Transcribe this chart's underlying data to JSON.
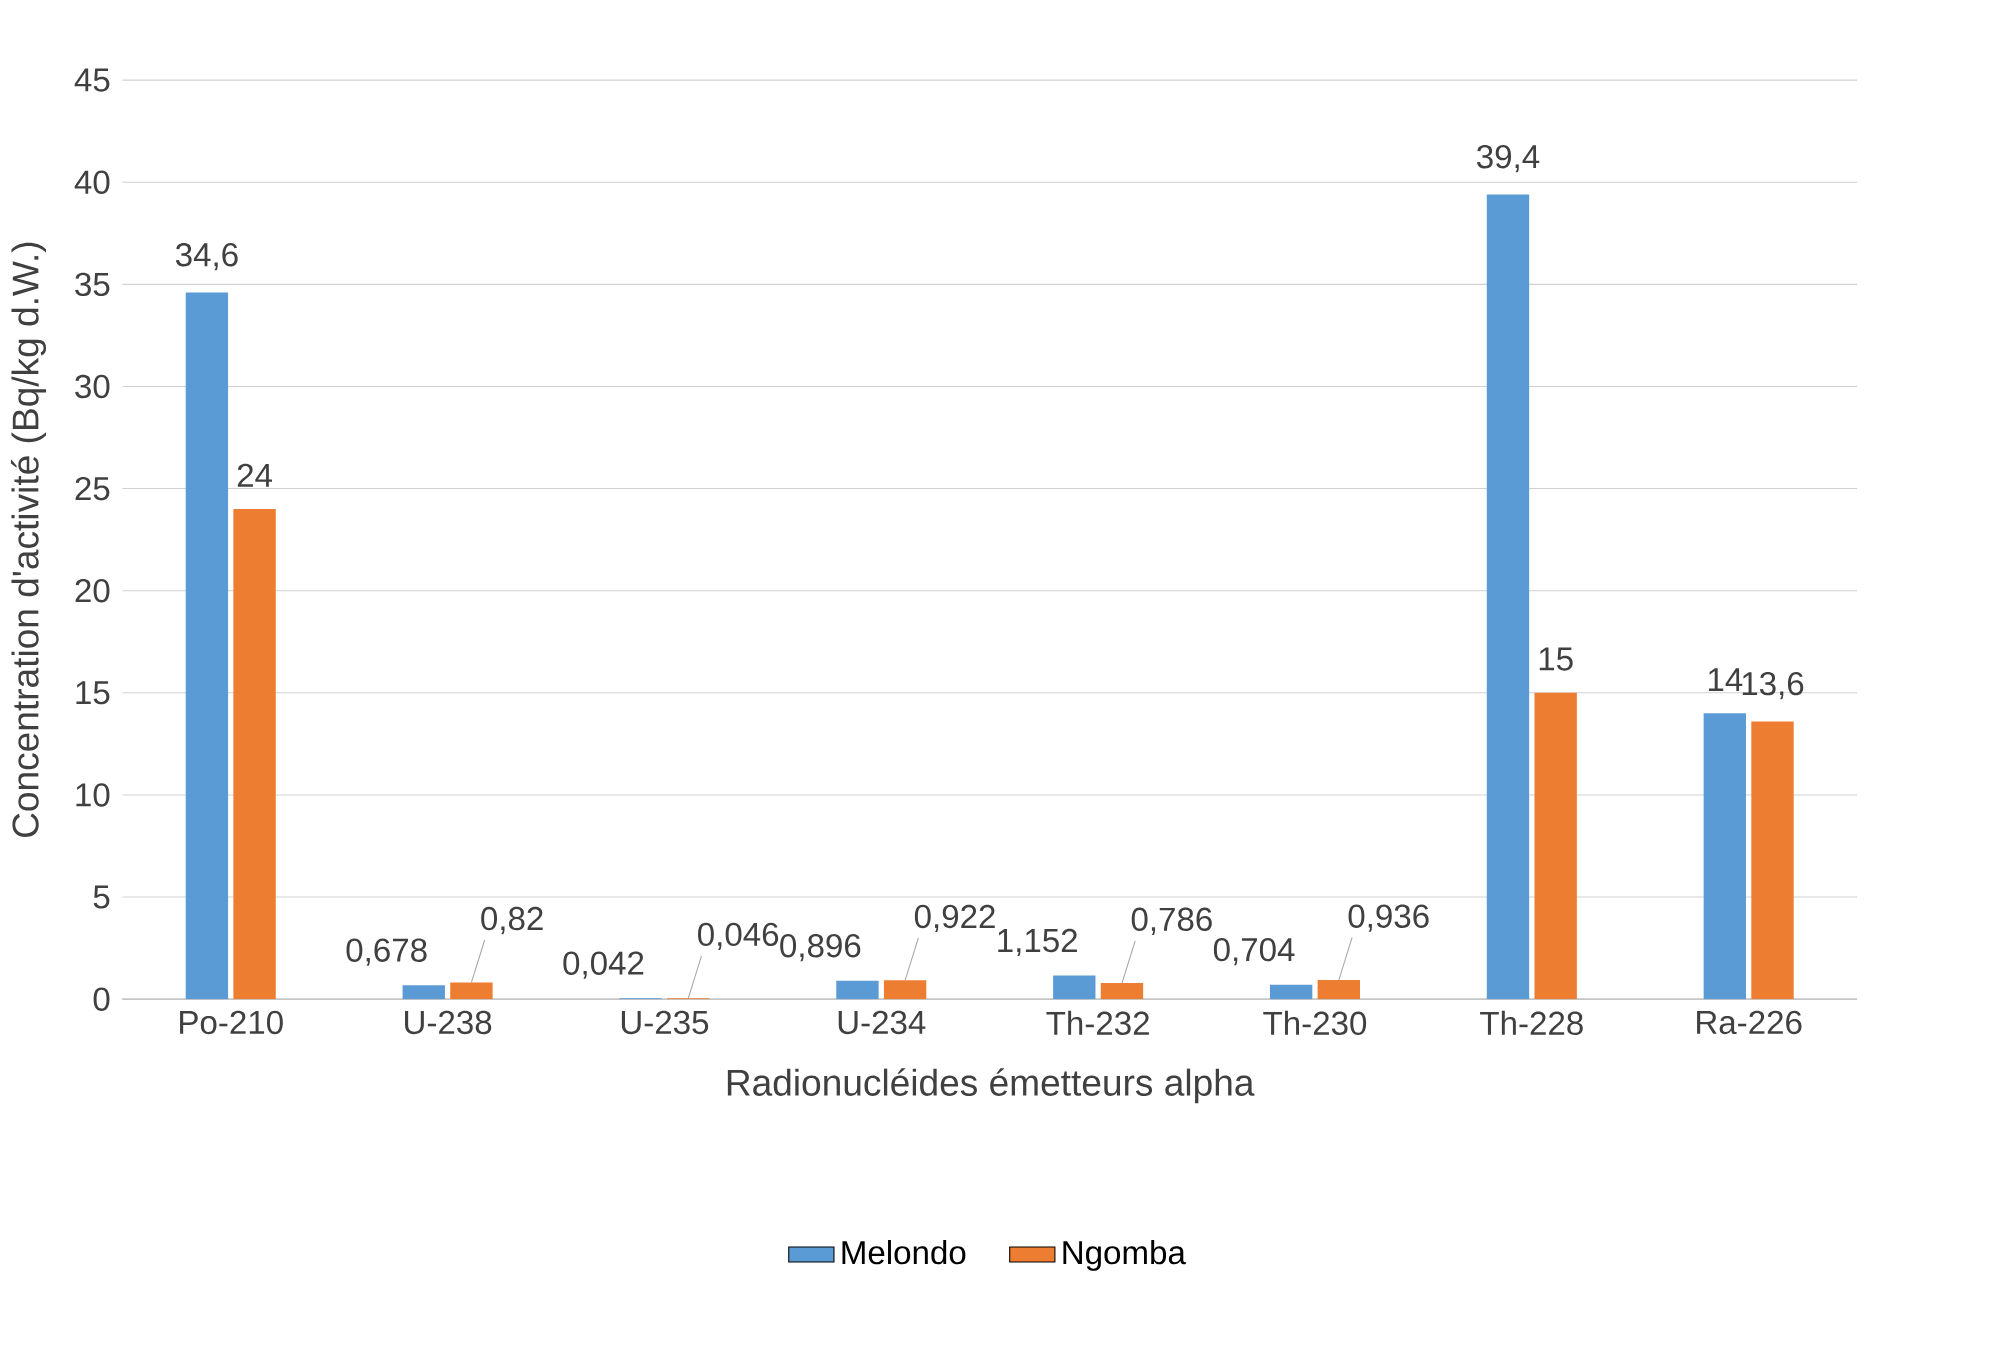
{
  "chart_data": {
    "type": "bar",
    "xlabel": "Radionucléides émetteurs alpha",
    "ylabel": "Concentration d'activité (Bq/kg d.W.)",
    "categories": [
      "Po-210",
      "U-238",
      "U-235",
      "U-234",
      "Th-232",
      "Th-230",
      "Th-228",
      "Ra-226"
    ],
    "series": [
      {
        "name": "Melondo",
        "color": "#5b9bd5",
        "values": [
          34.6,
          0.678,
          0.042,
          0.896,
          1.152,
          0.704,
          39.4,
          14
        ],
        "value_labels": [
          "34,6",
          "0,678",
          "0,042",
          "0,896",
          "1,152",
          "0,704",
          "39,4",
          "14"
        ]
      },
      {
        "name": "Ngomba",
        "color": "#ed7d31",
        "values": [
          24,
          0.82,
          0.046,
          0.922,
          0.786,
          0.936,
          15,
          13.6
        ],
        "value_labels": [
          "24",
          "0,82",
          "0,046",
          "0,922",
          "0,786",
          "0,936",
          "15",
          "13,6"
        ]
      }
    ],
    "ylim": [
      0,
      45
    ],
    "yticks": [
      0,
      5,
      10,
      15,
      20,
      25,
      30,
      35,
      40,
      45
    ],
    "grid": "y",
    "legend": "bottom"
  }
}
